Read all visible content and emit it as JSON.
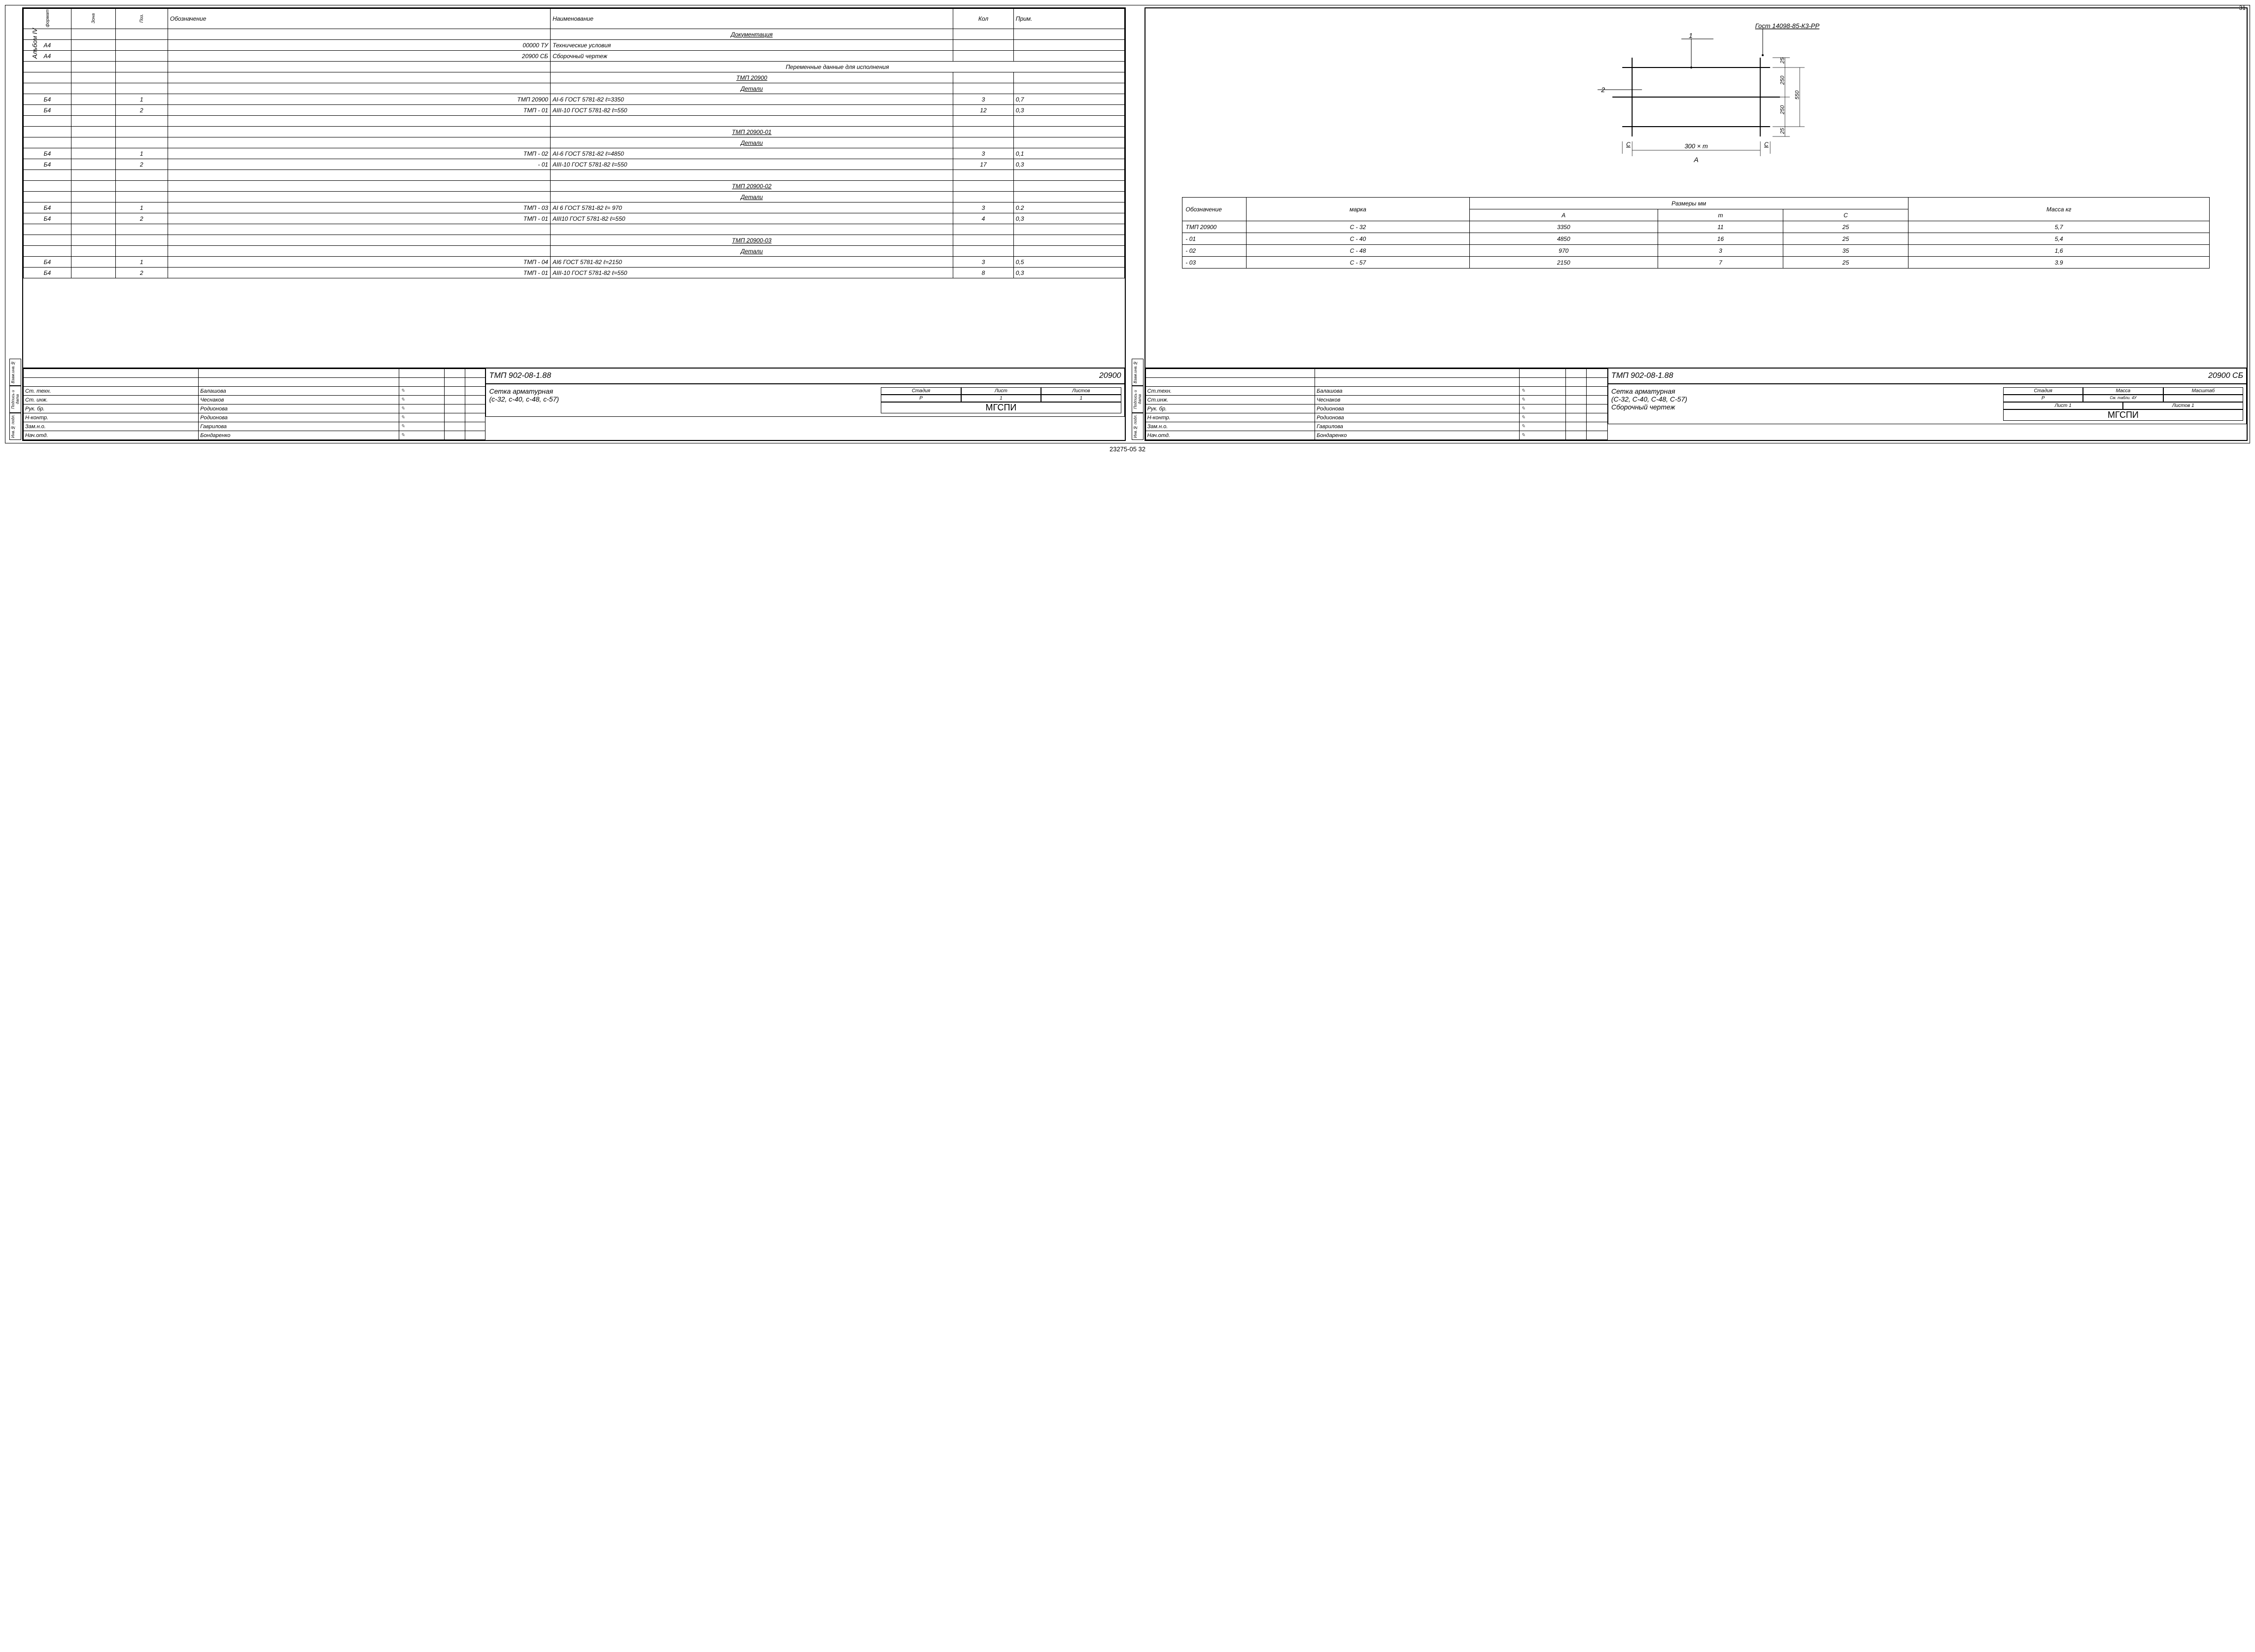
{
  "page_number": "31",
  "album_label": "Альбом IV",
  "side_vertical_labels": [
    "Инв.№ подл.",
    "Подпись и дата",
    "Взам.инв.№"
  ],
  "footer": "23275-05   32",
  "left": {
    "headers": {
      "format": "формат",
      "zone": "Зона",
      "pos": "Поз.",
      "designation": "Обозначение",
      "name": "Наименование",
      "qty": "Кол",
      "note": "Прим."
    },
    "rows": [
      {
        "type": "section",
        "name": "Документация"
      },
      {
        "f": "А4",
        "ob": "00000 ТУ",
        "na": "Технические условия"
      },
      {
        "f": "А4",
        "ob": "20900 СБ",
        "na": "Сборочный чертеж"
      },
      {
        "type": "merged",
        "na": "Переменные данные для исполнения"
      },
      {
        "type": "group",
        "na": "ТМП        20900"
      },
      {
        "type": "section",
        "na": "Детали"
      },
      {
        "f": "Б4",
        "p": "1",
        "ob": "ТМП            20900",
        "na": "АI-6 ГОСТ 5781-82 ℓ=3350",
        "k": "3",
        "pr": "0,7"
      },
      {
        "f": "Б4",
        "p": "2",
        "ob": "ТМП               - 01",
        "na": "АIII-10 ГОСТ 5781-82 ℓ=550",
        "k": "12",
        "pr": "0,3"
      },
      {
        "type": "blank"
      },
      {
        "type": "group",
        "na": "ТМП      20900-01"
      },
      {
        "type": "section",
        "na": "Детали"
      },
      {
        "f": "Б4",
        "p": "1",
        "ob": "ТМП               - 02",
        "na": "АI-6 ГОСТ 5781-82 ℓ=4850",
        "k": "3",
        "pr": "0,1"
      },
      {
        "f": "Б4",
        "p": "2",
        "ob": "                    - 01",
        "na": "АIII-10 ГОСТ 5781-82 ℓ=550",
        "k": "17",
        "pr": "0,3"
      },
      {
        "type": "blank"
      },
      {
        "type": "group",
        "na": "ТМП      20900-02"
      },
      {
        "type": "section",
        "na": "Детали"
      },
      {
        "f": "Б4",
        "p": "1",
        "ob": "ТМП               - 03",
        "na": "АI 6 ГОСТ 5781-82 ℓ= 970",
        "k": "3",
        "pr": "0.2"
      },
      {
        "f": "Б4",
        "p": "2",
        "ob": "ТМП               - 01",
        "na": "АIII10 ГОСТ 5781-82 ℓ=550",
        "k": "4",
        "pr": "0,3"
      },
      {
        "type": "blank"
      },
      {
        "type": "group",
        "na": "ТМП      20900-03"
      },
      {
        "type": "section",
        "na": "Детали"
      },
      {
        "f": "Б4",
        "p": "1",
        "ob": "ТМП              - 04",
        "na": "АI6 ГОСТ 5781-82 ℓ=2150",
        "k": "3",
        "pr": "0,5"
      },
      {
        "f": "Б4",
        "p": "2",
        "ob": "ТМП              - 01",
        "na": "АIII-10 ГОСТ 5781-82 ℓ=550",
        "k": "8",
        "pr": "0,3"
      }
    ],
    "title_block": {
      "signatures": [
        [
          "Ст. техн.",
          "Балашова"
        ],
        [
          "Ст. инж.",
          "Чеснаков"
        ],
        [
          "Рук. бр.",
          "Родионова"
        ],
        [
          "Н-контр.",
          "Родионова"
        ],
        [
          "Зам.н.о.",
          "Гаврилова"
        ],
        [
          "Нач.отд.",
          "Бондаренко"
        ]
      ],
      "doc_number": "ТМП 902-08-1.88",
      "doc_code": "20900",
      "doc_title1": "Сетка арматурная",
      "doc_title2": "(с-32, с-40, с-48, с-57)",
      "stage_hdr": "Стадия",
      "sheet_hdr": "Лист",
      "sheets_hdr": "Листов",
      "stage": "Р",
      "sheet": "1",
      "sheets": "1",
      "org": "МГСПИ"
    }
  },
  "right": {
    "gost_callout": "Гост 14098-85-К3-РР",
    "leader_1": "1",
    "leader_2": "2",
    "dim_c_left": "С",
    "dim_c_right": "С",
    "dim_A_expr": "300 × m",
    "dim_A_label": "А",
    "dim_25a": "25",
    "dim_25b": "25",
    "dim_250a": "250",
    "dim_250b": "250",
    "dim_550": "550",
    "table": {
      "hdr_designation": "Обозначение",
      "hdr_mark": "марка",
      "hdr_dims": "Размеры    мм",
      "hdr_A": "А",
      "hdr_m": "m",
      "hdr_c": "С",
      "hdr_mass": "Масса кг",
      "rows": [
        {
          "ob": "ТМП     20900",
          "mk": "С - 32",
          "A": "3350",
          "m": "11",
          "c": "25",
          "mass": "5,7"
        },
        {
          "ob": "          - 01",
          "mk": "С - 40",
          "A": "4850",
          "m": "16",
          "c": "25",
          "mass": "5,4"
        },
        {
          "ob": "          - 02",
          "mk": "С - 48",
          "A": "970",
          "m": "3",
          "c": "35",
          "mass": "1,6"
        },
        {
          "ob": "          - 03",
          "mk": "С - 57",
          "A": "2150",
          "m": "7",
          "c": "25",
          "mass": "3.9"
        }
      ]
    },
    "title_block": {
      "signatures": [
        [
          "Ст.техн.",
          "Балашова"
        ],
        [
          "Ст.инж.",
          "Чеснаков"
        ],
        [
          "Рук. бр.",
          "Родионова"
        ],
        [
          "Н-контр.",
          "Родионова"
        ],
        [
          "Зам.н.о.",
          "Гаврилова"
        ],
        [
          "Нач.отд.",
          "Бондаренко"
        ]
      ],
      "doc_number": "ТМП 902-08-1.88",
      "doc_code": "20900 СБ",
      "doc_title1": "Сетка арматурная",
      "doc_title2": "(С-32, С-40, С-48, С-57)",
      "doc_title3": "Сборочный чертеж",
      "stage_hdr": "Стадия",
      "mass_hdr": "Масса",
      "scale_hdr": "Масштаб",
      "stage": "Р",
      "mass_note": "См. табли. 4У",
      "sheet_label": "Лист 1",
      "sheets_label": "Листов 1",
      "org": "МГСПИ"
    }
  }
}
